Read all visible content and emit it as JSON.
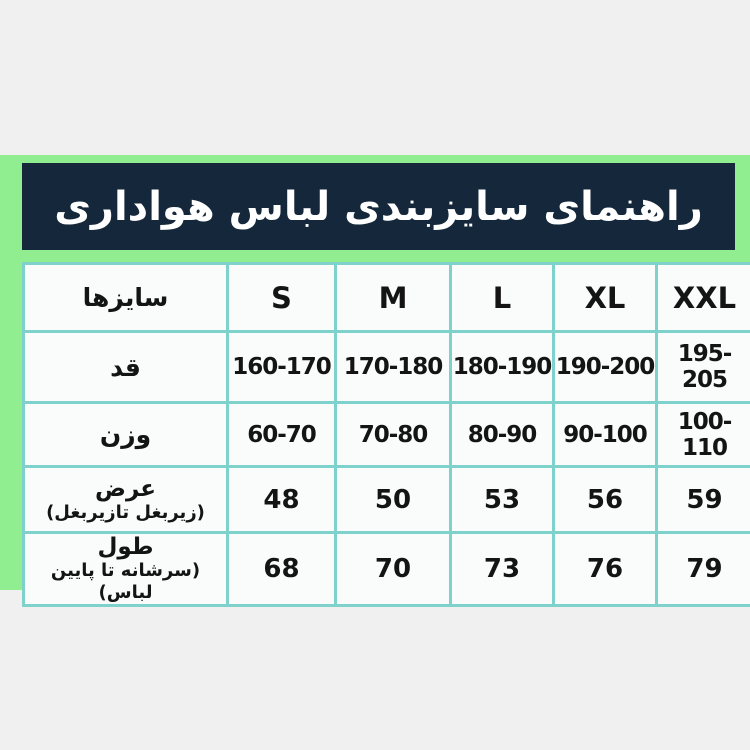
{
  "title": {
    "text": "راهنمای سایزبندی لباس هواداری"
  },
  "colors": {
    "page_bg": "#f0f0f1",
    "band_green": "#90ee90",
    "title_bg": "#15273a",
    "title_text": "#ffffff",
    "table_border": "#7fd1cb",
    "cell_bg": "#f9fcfb",
    "cell_text": "#141414"
  },
  "chart_data": {
    "type": "table",
    "title": "راهنمای سایزبندی لباس هواداری",
    "header": {
      "row_label_column": "سایزها",
      "columns": [
        "S",
        "M",
        "L",
        "XL",
        "XXL"
      ]
    },
    "rows": [
      {
        "label": "قد",
        "sublabel": "",
        "values": [
          "160-170",
          "170-180",
          "180-190",
          "190-200",
          "195-205"
        ]
      },
      {
        "label": "وزن",
        "sublabel": "",
        "values": [
          "60-70",
          "70-80",
          "80-90",
          "90-100",
          "100-110"
        ]
      },
      {
        "label": "عرض",
        "sublabel": "(زیربغل تازیربغل)",
        "values": [
          "48",
          "50",
          "53",
          "56",
          "59"
        ]
      },
      {
        "label": "طول",
        "sublabel": "(سرشانه تا پایین لباس)",
        "values": [
          "68",
          "70",
          "73",
          "76",
          "79"
        ]
      }
    ]
  }
}
